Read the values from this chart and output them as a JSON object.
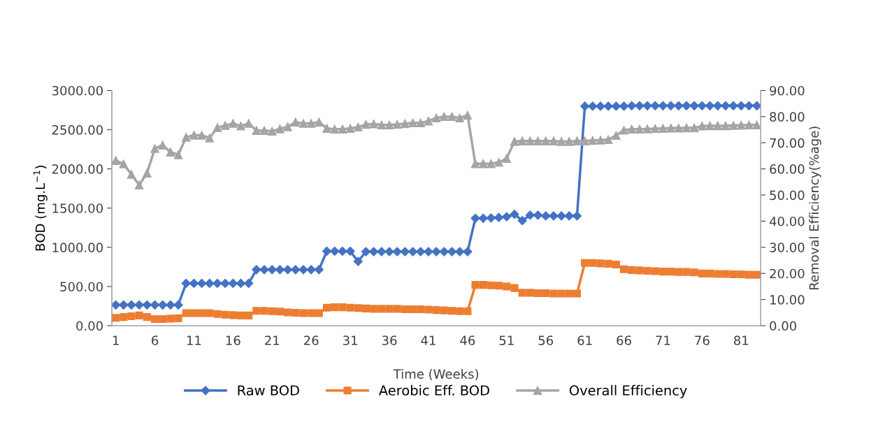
{
  "chart_data": {
    "type": "line",
    "xlabel": "Time (Weeks)",
    "ylabel": "BOD (mg.L$^{−1}$)",
    "y2label": "Removal Efficiency(%age)",
    "x": [
      1,
      2,
      3,
      4,
      5,
      6,
      7,
      8,
      9,
      10,
      11,
      12,
      13,
      14,
      15,
      16,
      17,
      18,
      19,
      20,
      21,
      22,
      23,
      24,
      25,
      26,
      27,
      28,
      29,
      30,
      31,
      32,
      33,
      34,
      35,
      36,
      37,
      38,
      39,
      40,
      41,
      42,
      43,
      44,
      45,
      46,
      47,
      48,
      49,
      50,
      51,
      52,
      53,
      54,
      55,
      56,
      57,
      58,
      59,
      60,
      61,
      62,
      63,
      64,
      65,
      66,
      67,
      68,
      69,
      70,
      71,
      72,
      73,
      74,
      75,
      76,
      77,
      78,
      79,
      80,
      81,
      82,
      83
    ],
    "xlim": [
      0.5,
      83.5
    ],
    "xticks": [
      1,
      6,
      11,
      16,
      21,
      26,
      31,
      36,
      41,
      46,
      51,
      56,
      61,
      66,
      71,
      76,
      81
    ],
    "ylim": [
      0,
      3000
    ],
    "yticks": [
      {
        "value": 0,
        "label": "0.00"
      },
      {
        "value": 500,
        "label": "500.00"
      },
      {
        "value": 1000,
        "label": "1000.00"
      },
      {
        "value": 1500,
        "label": "1500.00"
      },
      {
        "value": 2000,
        "label": "2000.00"
      },
      {
        "value": 2500,
        "label": "2500.00"
      },
      {
        "value": 3000,
        "label": "3000.00"
      }
    ],
    "y2lim": [
      0,
      90
    ],
    "y2ticks": [
      {
        "value": 0,
        "label": "0.00"
      },
      {
        "value": 10,
        "label": "10.00"
      },
      {
        "value": 20,
        "label": "20.00"
      },
      {
        "value": 30,
        "label": "30.00"
      },
      {
        "value": 40,
        "label": "40.00"
      },
      {
        "value": 50,
        "label": "50.00"
      },
      {
        "value": 60,
        "label": "60.00"
      },
      {
        "value": 70,
        "label": "70.00"
      },
      {
        "value": 80,
        "label": "80.00"
      },
      {
        "value": 90,
        "label": "90.00"
      }
    ],
    "grid": false,
    "legend": "bottom",
    "series": [
      {
        "name": "Raw BOD",
        "color": "#4472c4",
        "marker": "diamond",
        "values": [
          265,
          265,
          265,
          265,
          265,
          265,
          265,
          265,
          265,
          540,
          540,
          540,
          540,
          540,
          540,
          540,
          540,
          540,
          715,
          715,
          715,
          715,
          715,
          715,
          715,
          715,
          715,
          950,
          950,
          950,
          950,
          820,
          945,
          945,
          945,
          945,
          945,
          945,
          945,
          945,
          945,
          945,
          945,
          945,
          945,
          945,
          1370,
          1370,
          1375,
          1380,
          1390,
          1420,
          1340,
          1410,
          1410,
          1400,
          1400,
          1400,
          1400,
          1400,
          2800,
          2800,
          2800,
          2800,
          2800,
          2800,
          2805,
          2805,
          2805,
          2805,
          2805,
          2805,
          2805,
          2805,
          2805,
          2805,
          2805,
          2805,
          2805,
          2805,
          2805,
          2805,
          2805
        ]
      },
      {
        "name": "Aerobic Eff. BOD",
        "color": "#ed7d31",
        "marker": "square",
        "values": [
          100,
          110,
          120,
          130,
          110,
          85,
          85,
          90,
          95,
          160,
          160,
          160,
          160,
          150,
          140,
          135,
          130,
          130,
          190,
          190,
          185,
          180,
          170,
          165,
          160,
          160,
          160,
          230,
          235,
          235,
          230,
          225,
          220,
          215,
          215,
          215,
          215,
          210,
          210,
          210,
          205,
          200,
          195,
          190,
          185,
          185,
          520,
          520,
          515,
          510,
          500,
          480,
          420,
          420,
          415,
          415,
          410,
          410,
          410,
          410,
          800,
          800,
          795,
          790,
          780,
          720,
          710,
          705,
          700,
          695,
          690,
          690,
          685,
          685,
          680,
          665,
          665,
          660,
          660,
          655,
          655,
          650,
          650
        ]
      },
      {
        "name": "Overall Efficiency",
        "color": "#a5a5a5",
        "marker": "triangle",
        "axis": "y2",
        "values": [
          63.2,
          61.9,
          57.9,
          53.8,
          58.4,
          67.8,
          69.1,
          66.4,
          65.4,
          72.1,
          72.9,
          72.9,
          71.8,
          75.8,
          76.6,
          77.4,
          76.4,
          77.4,
          74.7,
          74.7,
          74.4,
          75.3,
          76.1,
          77.9,
          77.4,
          77.4,
          77.9,
          75.5,
          75.2,
          75.2,
          75.5,
          76.0,
          77.0,
          77.2,
          76.8,
          76.8,
          77.0,
          77.3,
          77.6,
          77.6,
          78.3,
          79.5,
          80.0,
          80.0,
          79.5,
          80.5,
          62.0,
          62.0,
          62.0,
          62.5,
          64.0,
          70.5,
          70.7,
          70.7,
          70.7,
          70.7,
          70.7,
          70.5,
          70.5,
          70.7,
          70.7,
          70.9,
          71.0,
          71.2,
          72.8,
          74.8,
          75.2,
          75.2,
          75.3,
          75.4,
          75.5,
          75.6,
          75.6,
          75.7,
          75.7,
          76.4,
          76.5,
          76.5,
          76.5,
          76.6,
          76.7,
          76.8,
          76.8
        ]
      }
    ]
  }
}
